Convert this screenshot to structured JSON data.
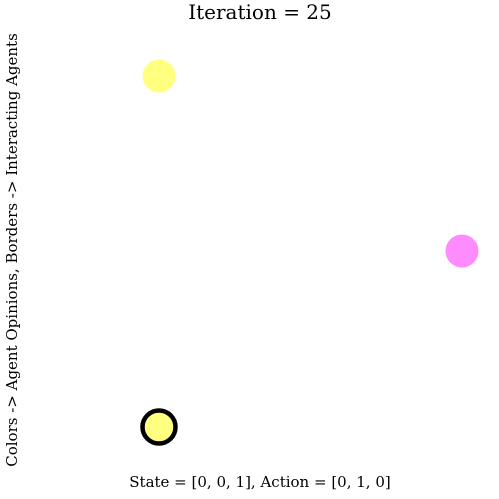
{
  "plot": {
    "title": "Iteration = 25",
    "ylabel": "Colors -> Agent Opinions, Borders -> Interacting Agents",
    "footer": "State = [0, 0, 1], Action = [0, 1, 0]"
  },
  "colors": {
    "opinion_yellow": "#ffff80",
    "opinion_magenta": "#ff8cff",
    "border": "#000000"
  },
  "agents": [
    {
      "id": "agent-top-yellow",
      "opinion_color": "#ffff80",
      "interacting": false
    },
    {
      "id": "agent-right-magenta",
      "opinion_color": "#ff8cff",
      "interacting": false
    },
    {
      "id": "agent-bottom-yellow",
      "opinion_color": "#ffff80",
      "interacting": true
    }
  ]
}
